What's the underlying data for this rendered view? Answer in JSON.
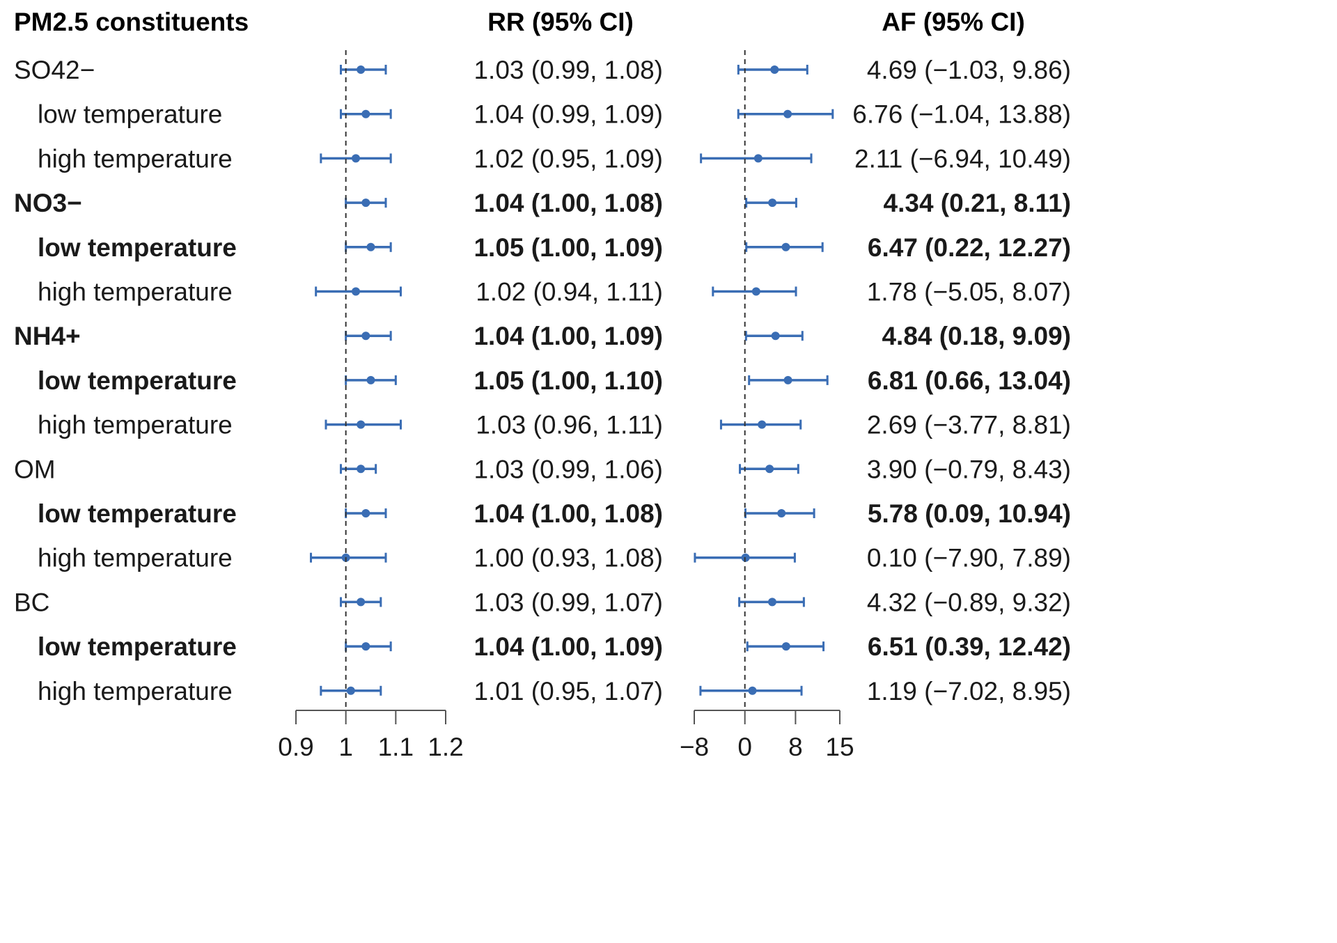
{
  "chart_data": {
    "type": "forest",
    "headers": {
      "label": "PM2.5  constituents",
      "rr": "RR (95% CI)",
      "af": "AF (95% CI)"
    },
    "colors": {
      "marker": "#3a6db4",
      "axis": "#555555",
      "text": "#1a1a1a",
      "reference": "#333333"
    },
    "rr_axis": {
      "ticks": [
        0.9,
        1,
        1.1,
        1.2
      ],
      "tick_labels": [
        "0.9",
        "1",
        "1.1",
        "1.2"
      ],
      "range": [
        0.9,
        1.2
      ],
      "reference": 1
    },
    "af_axis": {
      "ticks": [
        -8,
        0,
        8,
        15
      ],
      "tick_labels": [
        "−8",
        "0",
        "8",
        "15"
      ],
      "range": [
        -8,
        15
      ],
      "reference": 0
    },
    "rows": [
      {
        "label": "SO42−",
        "indent": false,
        "bold": false,
        "rr": 1.03,
        "rr_low": 0.99,
        "rr_high": 1.08,
        "rr_text": "1.03 (0.99, 1.08)",
        "af": 4.69,
        "af_low": -1.03,
        "af_high": 9.86,
        "af_text": "4.69 (−1.03, 9.86)"
      },
      {
        "label": "low temperature",
        "indent": true,
        "bold": false,
        "rr": 1.04,
        "rr_low": 0.99,
        "rr_high": 1.09,
        "rr_text": "1.04 (0.99, 1.09)",
        "af": 6.76,
        "af_low": -1.04,
        "af_high": 13.88,
        "af_text": "6.76 (−1.04, 13.88)"
      },
      {
        "label": "high temperature",
        "indent": true,
        "bold": false,
        "rr": 1.02,
        "rr_low": 0.95,
        "rr_high": 1.09,
        "rr_text": "1.02 (0.95, 1.09)",
        "af": 2.11,
        "af_low": -6.94,
        "af_high": 10.49,
        "af_text": "2.11 (−6.94, 10.49)"
      },
      {
        "label": "NO3−",
        "indent": false,
        "bold": true,
        "rr": 1.04,
        "rr_low": 1.0,
        "rr_high": 1.08,
        "rr_text": "1.04 (1.00, 1.08)",
        "af": 4.34,
        "af_low": 0.21,
        "af_high": 8.11,
        "af_text": "4.34 (0.21, 8.11)"
      },
      {
        "label": "low temperature",
        "indent": true,
        "bold": true,
        "rr": 1.05,
        "rr_low": 1.0,
        "rr_high": 1.09,
        "rr_text": "1.05 (1.00, 1.09)",
        "af": 6.47,
        "af_low": 0.22,
        "af_high": 12.27,
        "af_text": "6.47 (0.22, 12.27)"
      },
      {
        "label": "high temperature",
        "indent": true,
        "bold": false,
        "rr": 1.02,
        "rr_low": 0.94,
        "rr_high": 1.11,
        "rr_text": "1.02 (0.94, 1.11)",
        "af": 1.78,
        "af_low": -5.05,
        "af_high": 8.07,
        "af_text": "1.78 (−5.05, 8.07)"
      },
      {
        "label": "NH4+",
        "indent": false,
        "bold": true,
        "rr": 1.04,
        "rr_low": 1.0,
        "rr_high": 1.09,
        "rr_text": "1.04 (1.00, 1.09)",
        "af": 4.84,
        "af_low": 0.18,
        "af_high": 9.09,
        "af_text": "4.84 (0.18, 9.09)"
      },
      {
        "label": "low temperature",
        "indent": true,
        "bold": true,
        "rr": 1.05,
        "rr_low": 1.0,
        "rr_high": 1.1,
        "rr_text": "1.05 (1.00, 1.10)",
        "af": 6.81,
        "af_low": 0.66,
        "af_high": 13.04,
        "af_text": "6.81 (0.66, 13.04)"
      },
      {
        "label": "high temperature",
        "indent": true,
        "bold": false,
        "rr": 1.03,
        "rr_low": 0.96,
        "rr_high": 1.11,
        "rr_text": "1.03 (0.96, 1.11)",
        "af": 2.69,
        "af_low": -3.77,
        "af_high": 8.81,
        "af_text": "2.69 (−3.77, 8.81)"
      },
      {
        "label": "OM",
        "indent": false,
        "bold": false,
        "rr": 1.03,
        "rr_low": 0.99,
        "rr_high": 1.06,
        "rr_text": "1.03 (0.99, 1.06)",
        "af": 3.9,
        "af_low": -0.79,
        "af_high": 8.43,
        "af_text": "3.90 (−0.79, 8.43)"
      },
      {
        "label": "low temperature",
        "indent": true,
        "bold": true,
        "rr": 1.04,
        "rr_low": 1.0,
        "rr_high": 1.08,
        "rr_text": "1.04 (1.00, 1.08)",
        "af": 5.78,
        "af_low": 0.09,
        "af_high": 10.94,
        "af_text": "5.78 (0.09, 10.94)"
      },
      {
        "label": "high temperature",
        "indent": true,
        "bold": false,
        "rr": 1.0,
        "rr_low": 0.93,
        "rr_high": 1.08,
        "rr_text": "1.00 (0.93, 1.08)",
        "af": 0.1,
        "af_low": -7.9,
        "af_high": 7.89,
        "af_text": "0.10 (−7.90, 7.89)"
      },
      {
        "label": "BC",
        "indent": false,
        "bold": false,
        "rr": 1.03,
        "rr_low": 0.99,
        "rr_high": 1.07,
        "rr_text": "1.03 (0.99, 1.07)",
        "af": 4.32,
        "af_low": -0.89,
        "af_high": 9.32,
        "af_text": "4.32 (−0.89, 9.32)"
      },
      {
        "label": "low temperature",
        "indent": true,
        "bold": true,
        "rr": 1.04,
        "rr_low": 1.0,
        "rr_high": 1.09,
        "rr_text": "1.04 (1.00, 1.09)",
        "af": 6.51,
        "af_low": 0.39,
        "af_high": 12.42,
        "af_text": "6.51 (0.39, 12.42)"
      },
      {
        "label": "high temperature",
        "indent": true,
        "bold": false,
        "rr": 1.01,
        "rr_low": 0.95,
        "rr_high": 1.07,
        "rr_text": "1.01 (0.95, 1.07)",
        "af": 1.19,
        "af_low": -7.02,
        "af_high": 8.95,
        "af_text": "1.19 (−7.02, 8.95)"
      }
    ]
  }
}
